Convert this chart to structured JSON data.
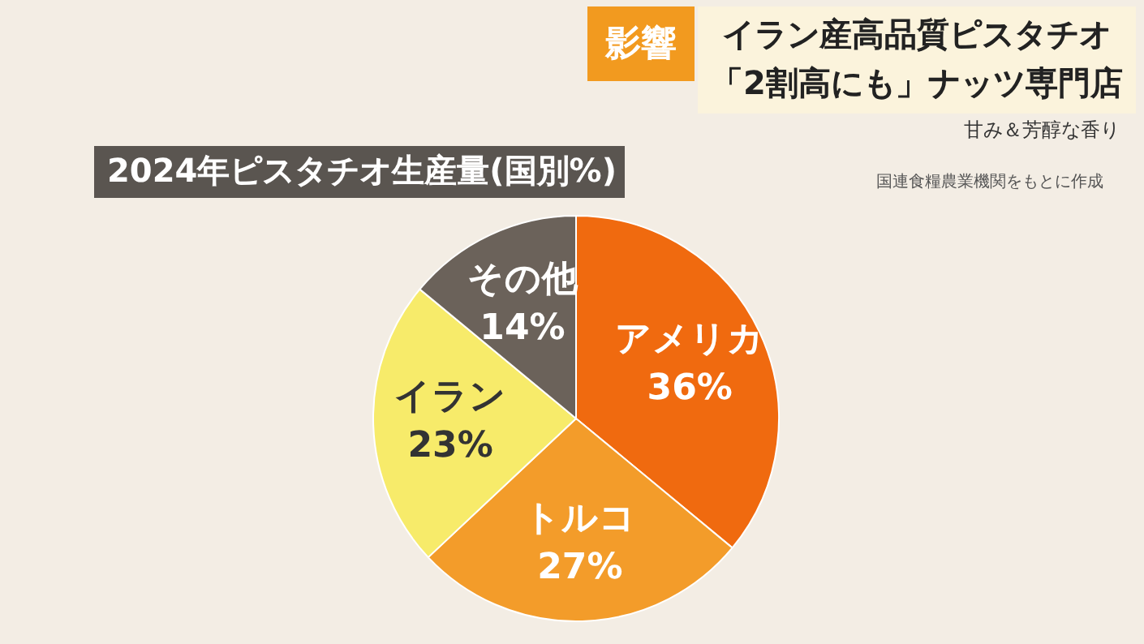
{
  "chart_data": {
    "type": "pie",
    "title": "2024年ピスタチオ生産量(国別%)",
    "categories": [
      "アメリカ",
      "トルコ",
      "イラン",
      "その他"
    ],
    "values": [
      36,
      27,
      23,
      14
    ],
    "colors": [
      "#f06a0f",
      "#f39c2a",
      "#f7eb6a",
      "#6b625a"
    ],
    "value_labels": [
      "36%",
      "27%",
      "23%",
      "14%"
    ],
    "annotations": [
      "影響",
      "イラン産高品質ピスタチオ",
      "「2割高にも」ナッツ専門店",
      "甘み＆芳醇な香り",
      "国連食糧農業機関をもとに作成"
    ]
  }
}
